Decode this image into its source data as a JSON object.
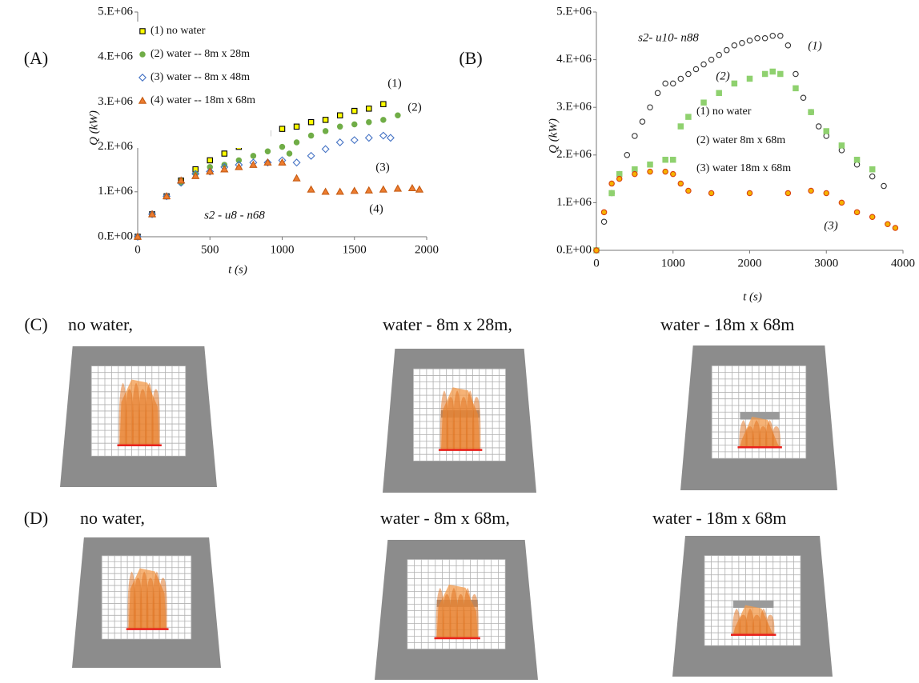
{
  "chart_data": [
    {
      "type": "scatter",
      "panel": "(A)",
      "ylabel": "Q (kW)",
      "xlabel": "t (s)",
      "legend": "upper left",
      "xlim": [
        0,
        2000
      ],
      "xticks": [
        0,
        500,
        1000,
        1500,
        2000
      ],
      "ylim": [
        0,
        5000000
      ],
      "yticks": [
        {
          "value": 0,
          "label": "0.E+00"
        },
        {
          "value": 1000000,
          "label": "1.E+06"
        },
        {
          "value": 2000000,
          "label": "2.E+06"
        },
        {
          "value": 3000000,
          "label": "3.E+06"
        },
        {
          "value": 4000000,
          "label": "4.E+06"
        },
        {
          "value": 5000000,
          "label": "5.E+06"
        }
      ],
      "annotations": [
        "(1)",
        "(2)",
        "(3)",
        "(4)",
        "s2 - u8 - n68"
      ],
      "series": [
        {
          "name": "(1) no water",
          "color": "#000000",
          "fill": "#ffff00",
          "marker": "square",
          "x": [
            0,
            100,
            200,
            300,
            400,
            500,
            600,
            700,
            800,
            900,
            1000,
            1100,
            1200,
            1300,
            1400,
            1500,
            1600,
            1700
          ],
          "values": [
            0,
            500000,
            900000,
            1250000,
            1500000,
            1700000,
            1850000,
            2000000,
            2150000,
            2300000,
            2400000,
            2450000,
            2550000,
            2600000,
            2700000,
            2800000,
            2850000,
            2950000
          ]
        },
        {
          "name": "(2) water -- 8m x 28m",
          "color": "#70ad47",
          "fill": "#70ad47",
          "marker": "circle",
          "x": [
            0,
            100,
            200,
            300,
            400,
            500,
            600,
            700,
            800,
            900,
            1000,
            1050,
            1100,
            1200,
            1300,
            1400,
            1500,
            1600,
            1700,
            1800
          ],
          "values": [
            0,
            500000,
            900000,
            1200000,
            1400000,
            1550000,
            1600000,
            1700000,
            1800000,
            1900000,
            2000000,
            1850000,
            2100000,
            2250000,
            2350000,
            2450000,
            2500000,
            2550000,
            2600000,
            2700000
          ]
        },
        {
          "name": "(3) water -- 8m x 48m",
          "color": "#4472c4",
          "fill": "none",
          "marker": "diamond",
          "x": [
            0,
            100,
            200,
            300,
            400,
            500,
            600,
            700,
            800,
            900,
            1000,
            1100,
            1200,
            1300,
            1400,
            1500,
            1600,
            1700,
            1750
          ],
          "values": [
            0,
            500000,
            900000,
            1200000,
            1400000,
            1450000,
            1550000,
            1600000,
            1650000,
            1650000,
            1700000,
            1650000,
            1800000,
            1950000,
            2100000,
            2150000,
            2200000,
            2250000,
            2200000
          ]
        },
        {
          "name": "(4) water -- 18m x 68m",
          "color": "#c55a11",
          "fill": "#ed7d31",
          "marker": "triangle",
          "x": [
            0,
            100,
            200,
            300,
            400,
            500,
            600,
            700,
            800,
            900,
            1000,
            1100,
            1200,
            1300,
            1400,
            1500,
            1600,
            1700,
            1800,
            1900,
            1950
          ],
          "values": [
            0,
            500000,
            900000,
            1250000,
            1350000,
            1450000,
            1500000,
            1550000,
            1600000,
            1650000,
            1650000,
            1300000,
            1050000,
            1000000,
            1000000,
            1020000,
            1030000,
            1050000,
            1070000,
            1080000,
            1050000
          ]
        }
      ]
    },
    {
      "type": "scatter",
      "panel": "(B)",
      "ylabel": "Q (kW)",
      "xlabel": "t (s)",
      "legend": "center",
      "xlim": [
        0,
        4000
      ],
      "xticks": [
        0,
        1000,
        2000,
        3000,
        4000
      ],
      "ylim": [
        0,
        5000000
      ],
      "yticks": [
        {
          "value": 0,
          "label": "0.E+00"
        },
        {
          "value": 1000000,
          "label": "1.E+06"
        },
        {
          "value": 2000000,
          "label": "2.E+06"
        },
        {
          "value": 3000000,
          "label": "3.E+06"
        },
        {
          "value": 4000000,
          "label": "4.E+06"
        },
        {
          "value": 5000000,
          "label": "5.E+06"
        }
      ],
      "annotations": [
        "s2- u10- n88",
        "(1)",
        "(2)",
        "(3)"
      ],
      "series": [
        {
          "name": "(1) no water",
          "color": "#333333",
          "fill": "none",
          "marker": "circle",
          "x": [
            0,
            100,
            200,
            300,
            400,
            500,
            600,
            700,
            800,
            900,
            1000,
            1100,
            1200,
            1300,
            1400,
            1500,
            1600,
            1700,
            1800,
            1900,
            2000,
            2100,
            2200,
            2300,
            2400,
            2500,
            2600,
            2700,
            2800,
            2900,
            3000,
            3200,
            3400,
            3600,
            3750
          ],
          "values": [
            0,
            600000,
            1200000,
            1600000,
            2000000,
            2400000,
            2700000,
            3000000,
            3300000,
            3500000,
            3500000,
            3600000,
            3700000,
            3800000,
            3900000,
            4000000,
            4100000,
            4200000,
            4300000,
            4350000,
            4400000,
            4450000,
            4450000,
            4500000,
            4500000,
            4300000,
            3700000,
            3200000,
            2900000,
            2600000,
            2400000,
            2100000,
            1800000,
            1550000,
            1350000
          ]
        },
        {
          "name": "(2) water 8m x 68m",
          "color": "#8fd16f",
          "fill": "#8fd16f",
          "marker": "square",
          "x": [
            0,
            200,
            300,
            500,
            700,
            900,
            1000,
            1100,
            1200,
            1400,
            1600,
            1800,
            2000,
            2200,
            2300,
            2400,
            2600,
            2800,
            3000,
            3200,
            3400,
            3600
          ],
          "values": [
            0,
            1200000,
            1600000,
            1700000,
            1800000,
            1900000,
            1900000,
            2600000,
            2800000,
            3100000,
            3300000,
            3500000,
            3600000,
            3700000,
            3750000,
            3700000,
            3400000,
            2900000,
            2500000,
            2200000,
            1900000,
            1700000
          ]
        },
        {
          "name": "(3) water 18m x 68m",
          "color": "#d9400f",
          "fill": "#f5b300",
          "marker": "circle",
          "x": [
            0,
            100,
            200,
            300,
            500,
            700,
            900,
            1000,
            1100,
            1200,
            1500,
            2000,
            2500,
            2800,
            3000,
            3200,
            3400,
            3600,
            3800,
            3900
          ],
          "values": [
            0,
            800000,
            1400000,
            1500000,
            1600000,
            1650000,
            1650000,
            1600000,
            1400000,
            1250000,
            1200000,
            1200000,
            1200000,
            1250000,
            1200000,
            1000000,
            800000,
            700000,
            550000,
            470000
          ]
        }
      ]
    }
  ],
  "figure": {
    "rows": [
      {
        "label": "(C)",
        "captions": [
          "no water,",
          "water - 8m x 28m,",
          "water - 18m x 68m"
        ]
      },
      {
        "label": "(D)",
        "captions": [
          "no water,",
          "water - 8m x 68m,",
          "water - 18m x 68m"
        ]
      }
    ]
  }
}
